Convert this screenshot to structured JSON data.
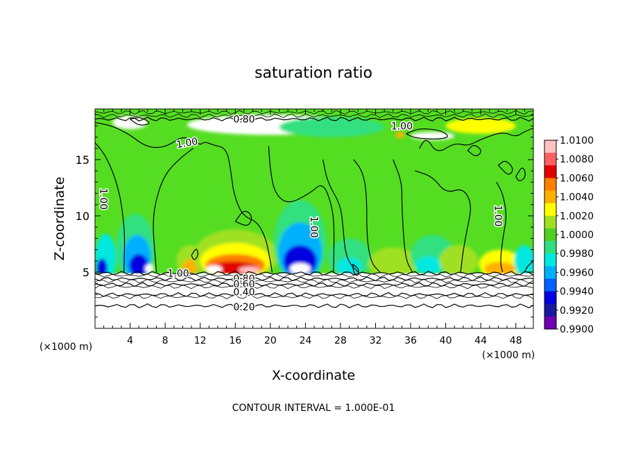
{
  "chart_data": {
    "type": "heatmap",
    "title": "saturation ratio",
    "xlabel": "X-coordinate",
    "ylabel": "Z-coordinate",
    "x_unit_left": "(×1000 m)",
    "x_unit_right": "(×1000 m)",
    "xlim": [
      0,
      50
    ],
    "ylim": [
      0,
      19.5
    ],
    "x_ticks": [
      4,
      8,
      12,
      16,
      20,
      24,
      28,
      32,
      36,
      40,
      44,
      48
    ],
    "x_tick_labels": [
      "4",
      "8",
      "12",
      "16",
      "20",
      "24",
      "28",
      "32",
      "36",
      "40",
      "44",
      "48"
    ],
    "y_ticks": [
      5,
      10,
      15
    ],
    "y_tick_labels": [
      "5",
      "10",
      "15"
    ],
    "footer": "CONTOUR INTERVAL = 1.000E-01",
    "colorbar": {
      "levels": [
        "1.0100",
        "1.0080",
        "1.0060",
        "1.0040",
        "1.0020",
        "1.0000",
        "0.9980",
        "0.9960",
        "0.9940",
        "0.9920",
        "0.9900"
      ],
      "colors": [
        "#ffc0c0",
        "#ff6060",
        "#e00000",
        "#ff7f00",
        "#ffb000",
        "#ffff00",
        "#a0e020",
        "#50d020",
        "#30e080",
        "#00e8e0",
        "#00b0ff",
        "#0060ff",
        "#0000e0",
        "#1818a0",
        "#7000b0"
      ]
    },
    "background_color": "#55dd22",
    "lower_isolines": [
      {
        "value": 0.2,
        "label": "0.20",
        "z": 2.0
      },
      {
        "value": 0.4,
        "label": "0.40",
        "z": 3.0
      },
      {
        "value": 0.6,
        "label": "0.60",
        "z": 3.9
      },
      {
        "value": 0.8,
        "label": "0.80",
        "z": 4.4
      },
      {
        "value": 1.0,
        "label": "1.00",
        "z": 4.9
      }
    ],
    "upper_isolines": [
      {
        "value": 0.8,
        "label": "0.80",
        "z": 18.6
      }
    ],
    "contour_labels": [
      {
        "text": "1.00",
        "x": 1.0,
        "z": 11.5,
        "rotate": 90
      },
      {
        "text": "1.00",
        "x": 10.5,
        "z": 16.5,
        "rotate": -10
      },
      {
        "text": "1.00",
        "x": 9.5,
        "z": 4.9,
        "rotate": 0
      },
      {
        "text": "1.00",
        "x": 25.0,
        "z": 9.0,
        "rotate": 90
      },
      {
        "text": "1.00",
        "x": 46.0,
        "z": 10.0,
        "rotate": 90
      },
      {
        "text": "1.00",
        "x": 35.0,
        "z": 18.0,
        "rotate": 0
      },
      {
        "text": "0.80",
        "x": 17.0,
        "z": 18.6,
        "rotate": 0
      },
      {
        "text": "0.80",
        "x": 17.0,
        "z": 4.45,
        "rotate": 0
      },
      {
        "text": "0.60",
        "x": 17.0,
        "z": 3.95,
        "rotate": 0
      },
      {
        "text": "0.40",
        "x": 17.0,
        "z": 3.25,
        "rotate": 0
      },
      {
        "text": "0.20",
        "x": 17.0,
        "z": 1.9,
        "rotate": 0
      }
    ],
    "blobs": [
      {
        "x": 1.2,
        "z": 6.2,
        "rx": 1.2,
        "rz": 2.2,
        "color": "#00e8e0"
      },
      {
        "x": 0.8,
        "z": 5.4,
        "rx": 0.6,
        "rz": 0.8,
        "color": "#0000e0"
      },
      {
        "x": 4.6,
        "z": 7.0,
        "rx": 2.2,
        "rz": 3.2,
        "color": "#30e080"
      },
      {
        "x": 4.8,
        "z": 6.3,
        "rx": 1.6,
        "rz": 2.0,
        "color": "#00b0ff"
      },
      {
        "x": 5.0,
        "z": 5.6,
        "rx": 1.1,
        "rz": 1.0,
        "color": "#0000e0"
      },
      {
        "x": 6.2,
        "z": 5.3,
        "rx": 0.5,
        "rz": 0.4,
        "color": "#ffffff"
      },
      {
        "x": 10.8,
        "z": 6.0,
        "rx": 1.5,
        "rz": 1.4,
        "color": "#a0e020"
      },
      {
        "x": 10.9,
        "z": 5.5,
        "rx": 0.9,
        "rz": 0.6,
        "color": "#ffb000"
      },
      {
        "x": 16.0,
        "z": 6.4,
        "rx": 4.8,
        "rz": 2.4,
        "color": "#a0e020"
      },
      {
        "x": 16.0,
        "z": 6.0,
        "rx": 4.0,
        "rz": 1.6,
        "color": "#ffff00"
      },
      {
        "x": 16.0,
        "z": 5.6,
        "rx": 3.4,
        "rz": 1.0,
        "color": "#ff7f00"
      },
      {
        "x": 15.8,
        "z": 5.35,
        "rx": 2.8,
        "rz": 0.6,
        "color": "#e00000"
      },
      {
        "x": 13.6,
        "z": 5.25,
        "rx": 0.9,
        "rz": 0.35,
        "color": "#ffffff"
      },
      {
        "x": 17.6,
        "z": 5.2,
        "rx": 1.2,
        "rz": 0.3,
        "color": "#ffc0c0"
      },
      {
        "x": 23.4,
        "z": 7.6,
        "rx": 3.0,
        "rz": 3.8,
        "color": "#30e080"
      },
      {
        "x": 23.4,
        "z": 6.8,
        "rx": 2.5,
        "rz": 2.6,
        "color": "#00b0ff"
      },
      {
        "x": 23.4,
        "z": 6.0,
        "rx": 1.9,
        "rz": 1.4,
        "color": "#0000e0"
      },
      {
        "x": 23.4,
        "z": 5.3,
        "rx": 1.2,
        "rz": 0.5,
        "color": "#ffffff"
      },
      {
        "x": 29.0,
        "z": 6.2,
        "rx": 2.5,
        "rz": 1.8,
        "color": "#30e080"
      },
      {
        "x": 29.0,
        "z": 5.5,
        "rx": 1.4,
        "rz": 0.8,
        "color": "#00e8e0"
      },
      {
        "x": 34.0,
        "z": 5.8,
        "rx": 2.8,
        "rz": 1.4,
        "color": "#a0e020"
      },
      {
        "x": 38.5,
        "z": 6.5,
        "rx": 2.5,
        "rz": 1.8,
        "color": "#30e080"
      },
      {
        "x": 38.0,
        "z": 5.6,
        "rx": 1.5,
        "rz": 0.8,
        "color": "#00e8e0"
      },
      {
        "x": 41.5,
        "z": 6.0,
        "rx": 2.2,
        "rz": 1.4,
        "color": "#a0e020"
      },
      {
        "x": 46.2,
        "z": 5.7,
        "rx": 2.4,
        "rz": 1.3,
        "color": "#ffff00"
      },
      {
        "x": 46.2,
        "z": 5.3,
        "rx": 1.8,
        "rz": 0.6,
        "color": "#ffb000"
      },
      {
        "x": 49.0,
        "z": 6.0,
        "rx": 1.2,
        "rz": 1.4,
        "color": "#00e8e0"
      },
      {
        "x": 20.0,
        "z": 18.1,
        "rx": 9.5,
        "rz": 0.9,
        "color": "#ffffff"
      },
      {
        "x": 27.0,
        "z": 17.9,
        "rx": 6.0,
        "rz": 0.9,
        "color": "#30e080"
      },
      {
        "x": 4.0,
        "z": 18.3,
        "rx": 2.0,
        "rz": 0.6,
        "color": "#ffffff"
      },
      {
        "x": 38.5,
        "z": 17.1,
        "rx": 2.5,
        "rz": 0.35,
        "color": "#ffffff"
      },
      {
        "x": 34.8,
        "z": 17.2,
        "rx": 0.5,
        "rz": 0.3,
        "color": "#ffb000"
      },
      {
        "x": 44.0,
        "z": 18.0,
        "rx": 4.0,
        "rz": 0.7,
        "color": "#ffff00"
      }
    ],
    "contours_1": [
      [
        [
          0.0,
          16.5
        ],
        [
          1.0,
          15.6
        ],
        [
          2.0,
          14.0
        ],
        [
          2.8,
          12.0
        ],
        [
          3.2,
          10.0
        ],
        [
          3.4,
          8.0
        ],
        [
          3.3,
          5.0
        ]
      ],
      [
        [
          0.0,
          18.3
        ],
        [
          2.0,
          18.0
        ],
        [
          4.0,
          17.2
        ],
        [
          5.5,
          16.3
        ],
        [
          7.0,
          16.0
        ],
        [
          8.5,
          16.3
        ],
        [
          10.0,
          17.1
        ],
        [
          11.5,
          16.6
        ],
        [
          12.0,
          16.3
        ],
        [
          12.5,
          16.6
        ],
        [
          13.5,
          16.3
        ],
        [
          15.0,
          16.0
        ],
        [
          15.5,
          14.0
        ],
        [
          15.8,
          12.0
        ],
        [
          16.8,
          10.0
        ],
        [
          18.5,
          9.5
        ],
        [
          19.5,
          8.0
        ],
        [
          20.0,
          6.0
        ],
        [
          20.2,
          5.0
        ]
      ],
      [
        [
          11.2,
          16.0
        ],
        [
          9.5,
          15.0
        ],
        [
          7.8,
          13.5
        ],
        [
          6.8,
          11.0
        ],
        [
          6.6,
          9.0
        ],
        [
          6.8,
          7.0
        ],
        [
          7.0,
          5.0
        ]
      ],
      [
        [
          19.8,
          16.2
        ],
        [
          20.0,
          14.0
        ],
        [
          20.5,
          12.0
        ],
        [
          22.0,
          11.0
        ],
        [
          24.5,
          12.0
        ],
        [
          26.0,
          13.0
        ],
        [
          27.0,
          11.0
        ],
        [
          27.3,
          9.0
        ],
        [
          27.2,
          5.0
        ]
      ],
      [
        [
          26.0,
          15.0
        ],
        [
          26.5,
          13.0
        ],
        [
          28.0,
          11.0
        ],
        [
          28.3,
          9.0
        ],
        [
          28.5,
          7.0
        ],
        [
          29.0,
          5.8
        ],
        [
          30.0,
          5.0
        ]
      ],
      [
        [
          29.5,
          15.0
        ],
        [
          30.5,
          14.0
        ],
        [
          31.0,
          12.0
        ],
        [
          31.0,
          8.0
        ],
        [
          31.5,
          5.8
        ],
        [
          32.5,
          5.0
        ]
      ],
      [
        [
          34.0,
          15.0
        ],
        [
          35.0,
          13.0
        ],
        [
          35.0,
          11.0
        ],
        [
          35.2,
          8.0
        ],
        [
          35.5,
          6.0
        ],
        [
          36.2,
          5.0
        ]
      ],
      [
        [
          37.0,
          16.0
        ],
        [
          37.8,
          17.0
        ],
        [
          39.0,
          15.5
        ],
        [
          41.0,
          16.5
        ],
        [
          42.5,
          16.2
        ],
        [
          44.0,
          16.8
        ],
        [
          46.5,
          17.5
        ],
        [
          48.0,
          17.0
        ],
        [
          49.0,
          17.5
        ],
        [
          50.0,
          17.8
        ]
      ],
      [
        [
          36.5,
          14.0
        ],
        [
          38.5,
          13.5
        ],
        [
          40.0,
          12.0
        ],
        [
          42.0,
          12.5
        ],
        [
          43.0,
          11.0
        ],
        [
          42.5,
          9.0
        ],
        [
          42.0,
          7.0
        ],
        [
          41.7,
          5.0
        ]
      ],
      [
        [
          45.8,
          13.0
        ],
        [
          46.5,
          12.0
        ],
        [
          47.0,
          10.0
        ],
        [
          46.5,
          8.0
        ],
        [
          46.2,
          5.8
        ],
        [
          46.5,
          5.0
        ]
      ],
      [
        [
          50.0,
          6.0
        ],
        [
          49.3,
          5.5
        ],
        [
          49.0,
          5.0
        ]
      ]
    ],
    "closed_contours": [
      [
        [
          4.0,
          18.6
        ],
        [
          5.0,
          18.0
        ],
        [
          6.5,
          18.2
        ],
        [
          5.2,
          18.8
        ],
        [
          4.0,
          18.6
        ]
      ],
      [
        [
          16.0,
          9.5
        ],
        [
          17.5,
          9.0
        ],
        [
          18.0,
          10.0
        ],
        [
          17.0,
          10.6
        ],
        [
          16.0,
          9.5
        ]
      ],
      [
        [
          11.0,
          6.5
        ],
        [
          11.6,
          7.2
        ],
        [
          11.8,
          6.5
        ],
        [
          11.3,
          6.0
        ],
        [
          11.0,
          6.5
        ]
      ],
      [
        [
          46.0,
          14.5
        ],
        [
          47.2,
          13.5
        ],
        [
          47.8,
          14.2
        ],
        [
          46.8,
          15.0
        ],
        [
          46.0,
          14.5
        ]
      ],
      [
        [
          42.5,
          15.8
        ],
        [
          43.5,
          15.2
        ],
        [
          44.2,
          15.8
        ],
        [
          43.2,
          16.4
        ],
        [
          42.5,
          15.8
        ]
      ],
      [
        [
          48.0,
          13.5
        ],
        [
          48.8,
          14.5
        ],
        [
          49.2,
          13.5
        ],
        [
          48.4,
          13.0
        ],
        [
          48.0,
          13.5
        ]
      ],
      [
        [
          35.5,
          17.3
        ],
        [
          37.0,
          17.8
        ],
        [
          39.5,
          17.6
        ],
        [
          40.5,
          17.0
        ],
        [
          39.0,
          16.8
        ],
        [
          36.5,
          16.9
        ],
        [
          35.5,
          17.3
        ]
      ],
      [
        [
          29.4,
          5.7
        ],
        [
          30.1,
          5.3
        ],
        [
          30.0,
          4.6
        ],
        [
          29.5,
          4.9
        ],
        [
          29.4,
          5.7
        ]
      ]
    ]
  }
}
